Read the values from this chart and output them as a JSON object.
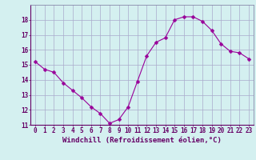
{
  "x": [
    0,
    1,
    2,
    3,
    4,
    5,
    6,
    7,
    8,
    9,
    10,
    11,
    12,
    13,
    14,
    15,
    16,
    17,
    18,
    19,
    20,
    21,
    22,
    23
  ],
  "y": [
    15.2,
    14.7,
    14.5,
    13.8,
    13.3,
    12.8,
    12.2,
    11.75,
    11.1,
    11.35,
    12.2,
    13.9,
    15.6,
    16.5,
    16.8,
    18.0,
    18.2,
    18.2,
    17.9,
    17.3,
    16.4,
    15.9,
    15.8,
    15.4
  ],
  "line_color": "#990099",
  "marker": "D",
  "marker_size": 2.5,
  "bg_color": "#d4f0f0",
  "grid_color": "#aaaacc",
  "xlabel": "Windchill (Refroidissement éolien,°C)",
  "xlabel_color": "#660066",
  "tick_color": "#660066",
  "spine_color": "#8888aa",
  "ylim": [
    11,
    19
  ],
  "xlim": [
    -0.5,
    23.5
  ],
  "yticks": [
    11,
    12,
    13,
    14,
    15,
    16,
    17,
    18
  ],
  "xticks": [
    0,
    1,
    2,
    3,
    4,
    5,
    6,
    7,
    8,
    9,
    10,
    11,
    12,
    13,
    14,
    15,
    16,
    17,
    18,
    19,
    20,
    21,
    22,
    23
  ],
  "xlabel_fontsize": 6.5,
  "tick_fontsize": 5.5
}
